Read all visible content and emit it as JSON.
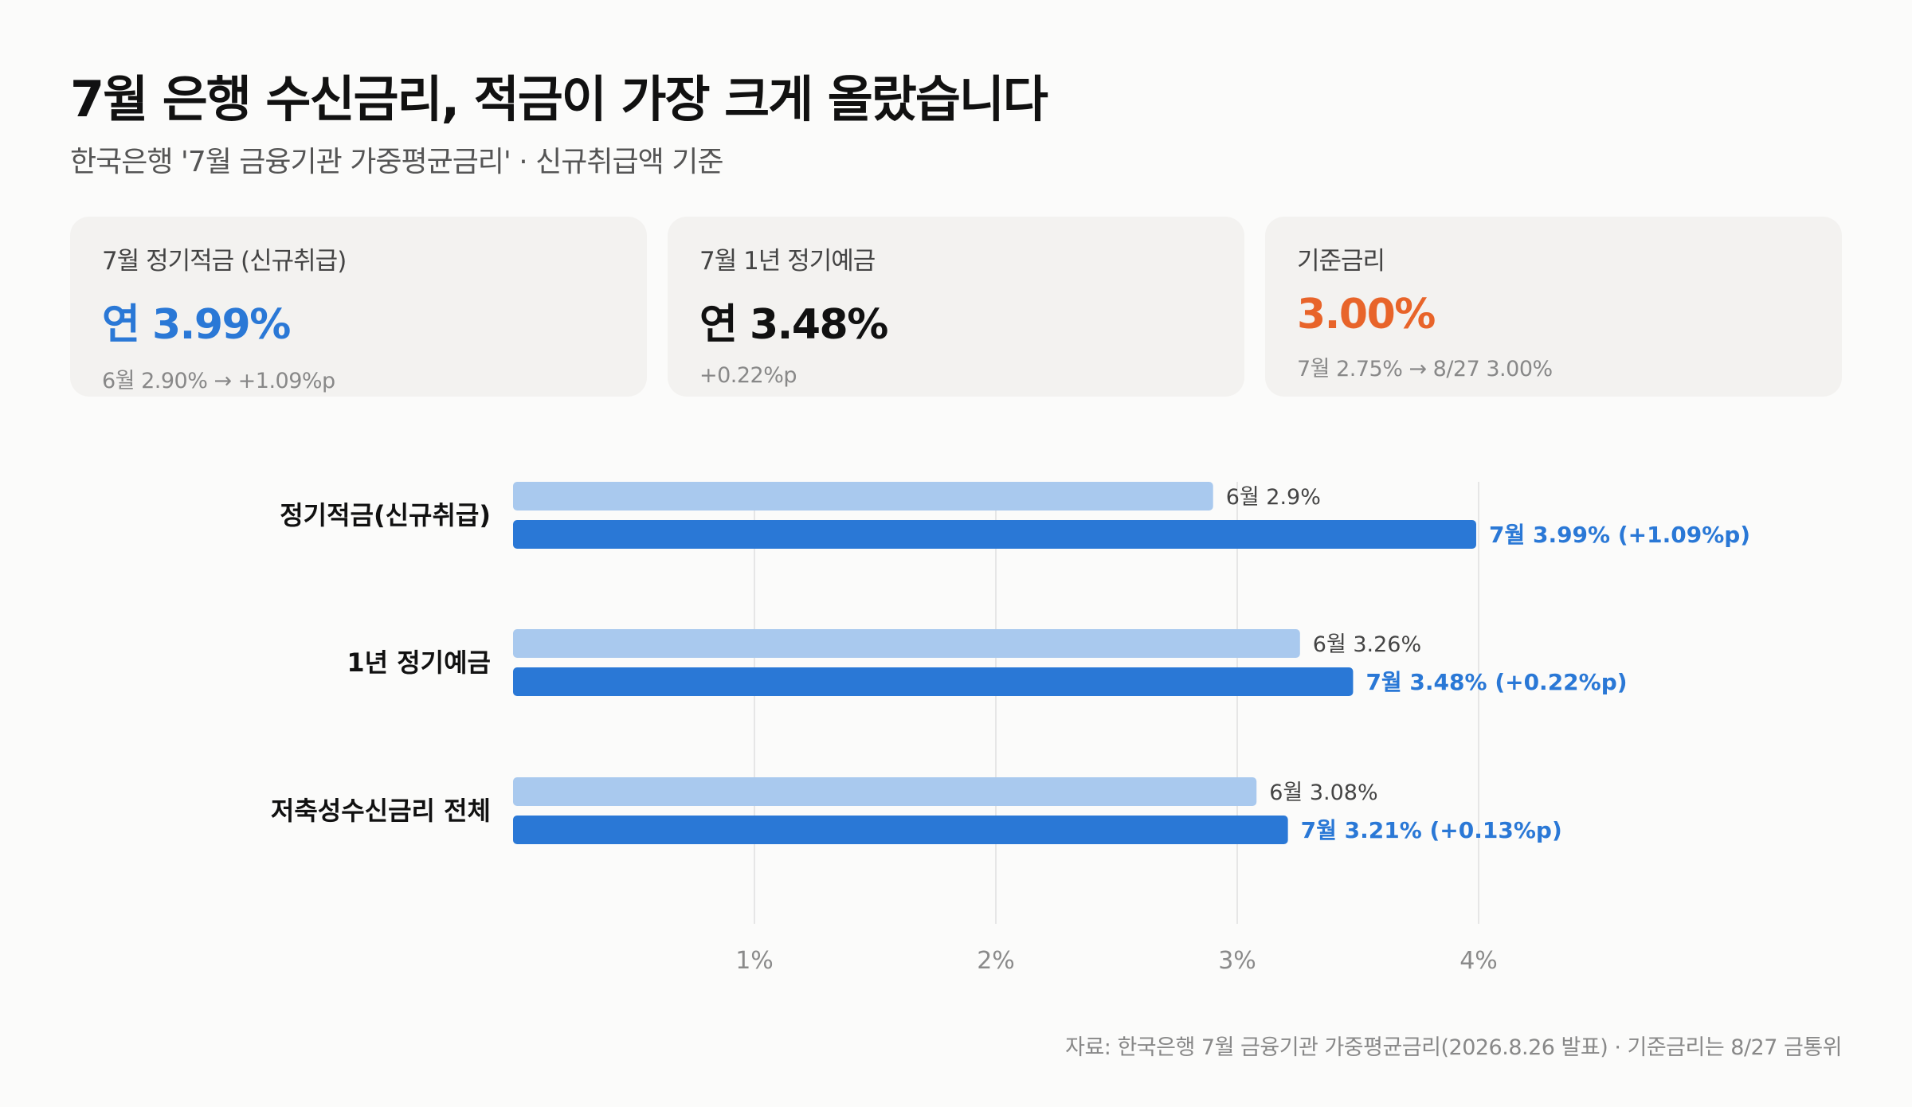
{
  "title": "7월 은행 수신금리, 적금이 가장 크게 올랐습니다",
  "subtitle": "한국은행 '7월 금융기관 가중평균금리' · 신규취급액 기준",
  "colors": {
    "accent_blue": "#2a78d6",
    "light_blue": "#a9c9ee",
    "accent_orange": "#e8642a",
    "grid": "#e6e6e6"
  },
  "cards": [
    {
      "label": "7월 정기적금 (신규취급)",
      "value": "연 3.99%",
      "note": "6월 2.90% → +1.09%p",
      "value_color": "#2a78d6"
    },
    {
      "label": "7월 1년 정기예금",
      "value": "연 3.48%",
      "note": "+0.22%p",
      "value_color": "#111111"
    },
    {
      "label": "기준금리",
      "value": "3.00%",
      "note": "7월 2.75% → 8/27 3.00%",
      "value_color": "#e8642a"
    }
  ],
  "chart_data": {
    "type": "bar",
    "orientation": "horizontal",
    "categories": [
      "정기적금(신규취급)",
      "1년 정기예금",
      "저축성수신금리 전체"
    ],
    "series": [
      {
        "values": [
          2.9,
          3.26,
          3.08
        ],
        "labels": [
          "6월 2.9%",
          "6월 3.26%",
          "6월 3.08%"
        ],
        "color": "#a9c9ee"
      },
      {
        "values": [
          3.99,
          3.48,
          3.21
        ],
        "labels": [
          "7월 3.99% (+1.09%p)",
          "7월 3.48% (+0.22%p)",
          "7월 3.21% (+0.13%p)"
        ],
        "color": "#2a78d6"
      }
    ],
    "xticks": [
      1,
      2,
      3,
      4
    ],
    "xtick_labels": [
      "1%",
      "2%",
      "3%",
      "4%"
    ],
    "xlim": [
      0,
      4
    ],
    "grid": true
  },
  "source": "자료: 한국은행 7월 금융기관 가중평균금리(2026.8.26 발표) · 기준금리는 8/27 금통위"
}
